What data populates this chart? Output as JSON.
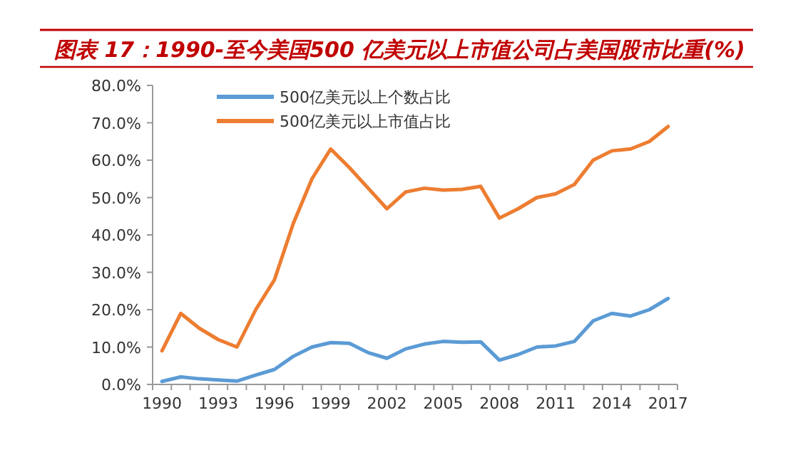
{
  "chart_data": {
    "type": "line",
    "title": "图表 17：1990-至今美国500 亿美元以上市值公司占美国股市比重(%)",
    "categories": [
      "1990",
      null,
      null,
      "1993",
      null,
      null,
      "1996",
      null,
      null,
      "1999",
      null,
      null,
      "2002",
      null,
      null,
      "2005",
      null,
      null,
      "2008",
      null,
      null,
      "2011",
      null,
      null,
      "2014",
      null,
      null,
      "2017"
    ],
    "series": [
      {
        "name": "500亿美元以上个数占比",
        "color": "#5b9bd5",
        "values": [
          0.8,
          2,
          1.5,
          1.2,
          0.9,
          2.5,
          4,
          7.5,
          10,
          11.2,
          11,
          8.5,
          7,
          9.5,
          10.8,
          11.5,
          11.3,
          11.4,
          6.5,
          8,
          10,
          10.3,
          11.5,
          17,
          19,
          18.3,
          20,
          23
        ]
      },
      {
        "name": "500亿美元以上市值占比",
        "color": "#ed7d31",
        "values": [
          9,
          19,
          15,
          12,
          10,
          20,
          28,
          43,
          55,
          63,
          58,
          52.5,
          47,
          51.5,
          52.5,
          52,
          52.2,
          53,
          44.5,
          47,
          50,
          51,
          53.5,
          60,
          62.5,
          63,
          65,
          69
        ]
      }
    ],
    "ylim": [
      0,
      80
    ],
    "yticks": [
      {
        "value": 0,
        "label": "0.0%"
      },
      {
        "value": 10,
        "label": "10.0%"
      },
      {
        "value": 20,
        "label": "20.0%"
      },
      {
        "value": 30,
        "label": "30.0%"
      },
      {
        "value": 40,
        "label": "40.0%"
      },
      {
        "value": 50,
        "label": "50.0%"
      },
      {
        "value": 60,
        "label": "60.0%"
      },
      {
        "value": 70,
        "label": "70.0%"
      },
      {
        "value": 80,
        "label": "80.0%"
      }
    ],
    "legend": "top left",
    "grid": false,
    "marker": "none",
    "line_style": "solid"
  }
}
